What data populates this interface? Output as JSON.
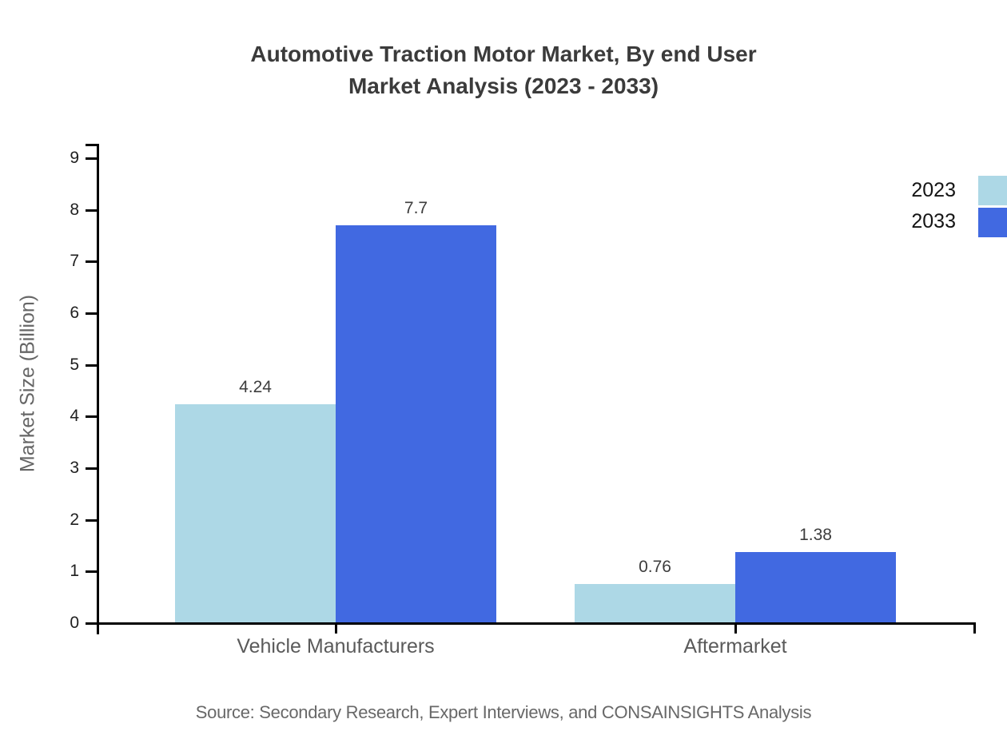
{
  "title": {
    "line1": "Automotive Traction Motor Market, By end User",
    "line2": "Market Analysis (2023 - 2033)"
  },
  "source": "Source: Secondary Research, Expert Interviews, and CONSAINSIGHTS Analysis",
  "chart_data": {
    "type": "bar",
    "title": "Automotive Traction Motor Market, By end User Market Analysis (2023 - 2033)",
    "categories": [
      "Vehicle Manufacturers",
      "Aftermarket"
    ],
    "series": [
      {
        "name": "2023",
        "color": "#ADD8E6",
        "values": [
          4.24,
          0.76
        ]
      },
      {
        "name": "2033",
        "color": "#4169E1",
        "values": [
          7.7,
          1.38
        ]
      }
    ],
    "value_labels": [
      [
        "4.24",
        "0.76"
      ],
      [
        "7.7",
        "1.38"
      ]
    ],
    "xlabel": "",
    "ylabel": "Market Size (Billion)",
    "ylim": [
      0,
      9
    ],
    "yticks": [
      0,
      1,
      2,
      3,
      4,
      5,
      6,
      7,
      8,
      9
    ],
    "grid": false,
    "legend_position": "top-right",
    "axis_color": "#000000",
    "label_color": "#3d3d3d"
  }
}
